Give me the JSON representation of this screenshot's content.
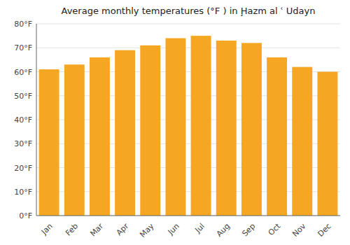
{
  "chart_data": {
    "type": "bar",
    "title": "Average monthly temperatures (°F ) in Ḩazm al ʿ Udayn",
    "categories": [
      "Jan",
      "Feb",
      "Mar",
      "Apr",
      "May",
      "Jun",
      "Jul",
      "Aug",
      "Sep",
      "Oct",
      "Nov",
      "Dec"
    ],
    "values": [
      61,
      63,
      66,
      69,
      71,
      74,
      75,
      73,
      72,
      66,
      62,
      60
    ],
    "color": "#F5A623",
    "ylim": [
      0,
      80
    ],
    "yticks": [
      {
        "value": 0,
        "label": "0°F"
      },
      {
        "value": 10,
        "label": "10°F"
      },
      {
        "value": 20,
        "label": "20°F"
      },
      {
        "value": 30,
        "label": "30°F"
      },
      {
        "value": 40,
        "label": "40°F"
      },
      {
        "value": 50,
        "label": "50°F"
      },
      {
        "value": 60,
        "label": "60°F"
      },
      {
        "value": 70,
        "label": "70°F"
      },
      {
        "value": 80,
        "label": "80°F"
      }
    ],
    "grid": true
  }
}
